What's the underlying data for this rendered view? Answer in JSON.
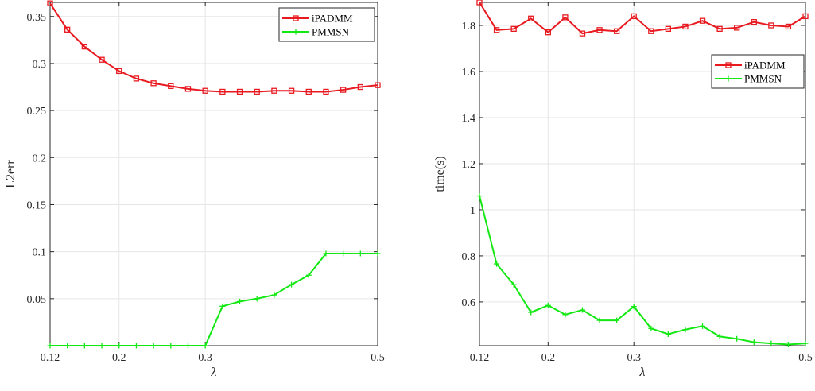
{
  "chart_data": [
    {
      "type": "line",
      "xlabel": "λ",
      "ylabel": "L2err",
      "xlim": [
        0.12,
        0.5
      ],
      "ylim": [
        0,
        0.365
      ],
      "xticks": [
        0.12,
        0.2,
        0.3,
        0.5
      ],
      "xtick_labels": [
        "0.12",
        "0.2",
        "0.3",
        "0.5"
      ],
      "yticks": [
        0.05,
        0.1,
        0.15,
        0.2,
        0.25,
        0.3,
        0.35
      ],
      "ytick_labels": [
        "0.05",
        "0.1",
        "0.15",
        "0.2",
        "0.25",
        "0.3",
        "0.35"
      ],
      "grid": true,
      "legend_position": "top-right",
      "x": [
        0.12,
        0.14,
        0.16,
        0.18,
        0.2,
        0.22,
        0.24,
        0.26,
        0.28,
        0.3,
        0.32,
        0.34,
        0.36,
        0.38,
        0.4,
        0.42,
        0.44,
        0.46,
        0.48,
        0.5
      ],
      "series": [
        {
          "name": "iPADMM",
          "color": "#e8191f",
          "marker": "square",
          "values": [
            0.364,
            0.336,
            0.318,
            0.304,
            0.292,
            0.284,
            0.279,
            0.276,
            0.273,
            0.271,
            0.27,
            0.27,
            0.27,
            0.271,
            0.271,
            0.27,
            0.27,
            0.272,
            0.275,
            0.277
          ]
        },
        {
          "name": "PMMSN",
          "color": "#12e812",
          "marker": "plus",
          "values": [
            0.0,
            0.0,
            0.0,
            0.0,
            0.0,
            0.0,
            0.0,
            0.0,
            0.0,
            0.0,
            0.042,
            0.047,
            0.05,
            0.054,
            0.065,
            0.075,
            0.098,
            0.098,
            0.098,
            0.098
          ]
        }
      ]
    },
    {
      "type": "line",
      "xlabel": "λ",
      "ylabel": "time(s)",
      "xlim": [
        0.12,
        0.5
      ],
      "ylim": [
        0.41,
        1.9
      ],
      "xticks": [
        0.12,
        0.2,
        0.3,
        0.5
      ],
      "xtick_labels": [
        "0.12",
        "0.2",
        "0.3",
        "0.5"
      ],
      "yticks": [
        0.6,
        0.8,
        1.0,
        1.2,
        1.4,
        1.6,
        1.8
      ],
      "ytick_labels": [
        "0.6",
        "0.8",
        "1",
        "1.2",
        "1.4",
        "1.6",
        "1.8"
      ],
      "grid": true,
      "legend_position": "upper-right",
      "x": [
        0.12,
        0.14,
        0.16,
        0.18,
        0.2,
        0.22,
        0.24,
        0.26,
        0.28,
        0.3,
        0.32,
        0.34,
        0.36,
        0.38,
        0.4,
        0.42,
        0.44,
        0.46,
        0.48,
        0.5
      ],
      "series": [
        {
          "name": "iPADMM",
          "color": "#e8191f",
          "marker": "square",
          "values": [
            1.9,
            1.78,
            1.785,
            1.83,
            1.77,
            1.835,
            1.765,
            1.78,
            1.775,
            1.84,
            1.775,
            1.785,
            1.795,
            1.82,
            1.785,
            1.79,
            1.815,
            1.8,
            1.795,
            1.84
          ]
        },
        {
          "name": "PMMSN",
          "color": "#12e812",
          "marker": "plus",
          "values": [
            1.06,
            0.765,
            0.675,
            0.555,
            0.585,
            0.545,
            0.565,
            0.52,
            0.52,
            0.58,
            0.485,
            0.46,
            0.48,
            0.495,
            0.45,
            0.44,
            0.425,
            0.42,
            0.415,
            0.42
          ]
        }
      ]
    }
  ]
}
